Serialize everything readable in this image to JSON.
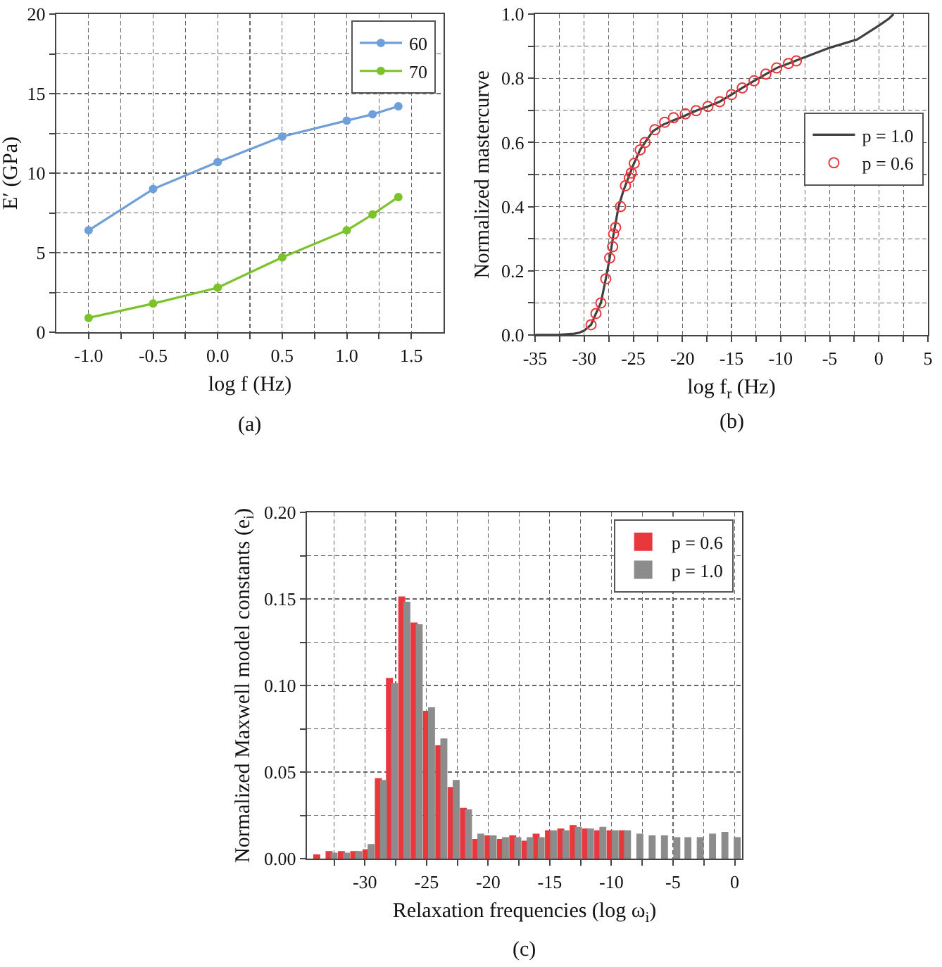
{
  "chart_data": [
    {
      "type": "line",
      "xlabel": "log f (Hz)",
      "ylabel": "E′ (GPa)",
      "annotations": [
        "(a)"
      ],
      "xlim": [
        -1.25,
        1.75
      ],
      "ylim": [
        0,
        20
      ],
      "xticks": [
        {
          "value": -1,
          "label": "-1.0"
        },
        {
          "value": -0.75,
          "label": null
        },
        {
          "value": -0.5,
          "label": "-0.5"
        },
        {
          "value": -0.25,
          "label": null
        },
        {
          "value": 0,
          "label": "0.0"
        },
        {
          "value": 0.25,
          "label": null
        },
        {
          "value": 0.5,
          "label": "0.5"
        },
        {
          "value": 0.75,
          "label": null
        },
        {
          "value": 1,
          "label": "1.0"
        },
        {
          "value": 1.25,
          "label": null
        },
        {
          "value": 1.5,
          "label": "1.5"
        }
      ],
      "yticks": [
        0,
        {
          "value": 2.5,
          "label": null
        },
        5,
        {
          "value": 7.5,
          "label": null
        },
        10,
        {
          "value": 12.5,
          "label": null
        },
        15,
        {
          "value": 17.5,
          "label": null
        },
        20
      ],
      "grid": true,
      "legend": "top right",
      "marker": "circle",
      "line_style": "solid",
      "series": [
        {
          "name": "60",
          "color": "#6e9fd8",
          "x": [
            -1,
            -0.5,
            0,
            0.5,
            1,
            1.2,
            1.4
          ],
          "values": [
            6.4,
            9.0,
            10.7,
            12.3,
            13.3,
            13.7,
            14.2
          ]
        },
        {
          "name": "70",
          "color": "#7cc22a",
          "x": [
            -1,
            -0.5,
            0,
            0.5,
            1,
            1.2,
            1.4
          ],
          "values": [
            0.9,
            1.8,
            2.8,
            4.7,
            6.4,
            7.4,
            8.5
          ]
        }
      ]
    },
    {
      "type": "line",
      "xlabel": "log f$_{r}$ (Hz)",
      "ylabel": "Normalized mastercurve",
      "annotations": [
        "(b)"
      ],
      "xlim": [
        -35,
        5
      ],
      "ylim": [
        0,
        1
      ],
      "xticks": [
        -35,
        {
          "value": -32.5,
          "label": null
        },
        -30,
        {
          "value": -27.5,
          "label": null
        },
        -25,
        {
          "value": -22.5,
          "label": null
        },
        -20,
        {
          "value": -17.5,
          "label": null
        },
        -15,
        {
          "value": -12.5,
          "label": null
        },
        -10,
        {
          "value": -7.5,
          "label": null
        },
        -5,
        {
          "value": -2.5,
          "label": null
        },
        0,
        {
          "value": 2.5,
          "label": null
        },
        5
      ],
      "yticks": [
        {
          "value": 0,
          "label": "0.0"
        },
        {
          "value": 0.1,
          "label": null
        },
        0.2,
        {
          "value": 0.3,
          "label": null
        },
        0.4,
        {
          "value": 0.5,
          "label": null
        },
        0.6,
        {
          "value": 0.7,
          "label": null
        },
        0.8,
        {
          "value": 0.9,
          "label": null
        },
        {
          "value": 1,
          "label": "1.0"
        }
      ],
      "grid": true,
      "legend": "right",
      "series": [
        {
          "name": "p = 1.0",
          "color": "#404040",
          "line_style": "solid",
          "x": [
            -35,
            -32.5,
            -31,
            -30.5,
            -30,
            -29.3,
            -28.8,
            -28.3,
            -27.8,
            -27.4,
            -27,
            -26.5,
            -26,
            -25.5,
            -25,
            -24.3,
            -23.8,
            -23,
            -22,
            -21,
            -20,
            -18.6,
            -17.4,
            -16.2,
            -15,
            -13.9,
            -12.7,
            -11.5,
            -10.4,
            -9.2,
            -8,
            -5,
            -2.2,
            0,
            1,
            1.5
          ],
          "values": [
            0,
            0.001,
            0.004,
            0.007,
            0.014,
            0.032,
            0.067,
            0.1,
            0.175,
            0.24,
            0.315,
            0.4,
            0.45,
            0.49,
            0.53,
            0.577,
            0.6,
            0.635,
            0.655,
            0.668,
            0.68,
            0.699,
            0.712,
            0.727,
            0.749,
            0.77,
            0.792,
            0.813,
            0.832,
            0.846,
            0.86,
            0.895,
            0.921,
            0.964,
            0.985,
            1
          ]
        },
        {
          "name": "p = 0.6",
          "type": "scatter",
          "color": "#e8383d",
          "marker": "circle",
          "x": [
            -29.3,
            -28.8,
            -28.3,
            -27.8,
            -27.4,
            -27.1,
            -27,
            -26.8,
            -26.3,
            -25.8,
            -25.4,
            -25.2,
            -24.9,
            -24.3,
            -23.8,
            -22.8,
            -21.8,
            -20.9,
            -19.7,
            -18.6,
            -17.4,
            -16.2,
            -15,
            -13.9,
            -12.7,
            -11.5,
            -10.4,
            -9.2,
            -8.4
          ],
          "values": [
            0.032,
            0.067,
            0.1,
            0.175,
            0.24,
            0.275,
            0.315,
            0.335,
            0.4,
            0.465,
            0.49,
            0.505,
            0.535,
            0.577,
            0.6,
            0.64,
            0.663,
            0.677,
            0.689,
            0.699,
            0.712,
            0.727,
            0.749,
            0.77,
            0.792,
            0.813,
            0.832,
            0.846,
            0.854
          ]
        }
      ]
    },
    {
      "type": "bar",
      "xlabel": "Relaxation frequencies (log ω$_{i}$)",
      "ylabel": "Normalized Maxwell model constants (e$_{i}$)",
      "annotations": [
        "(c)"
      ],
      "xlim": [
        -34.7,
        0.6
      ],
      "ylim": [
        0,
        0.2
      ],
      "xticks": [
        {
          "value": -32.5,
          "label": null
        },
        -30,
        {
          "value": -27.5,
          "label": null
        },
        -25,
        {
          "value": -22.5,
          "label": null
        },
        -20,
        {
          "value": -17.5,
          "label": null
        },
        -15,
        {
          "value": -12.5,
          "label": null
        },
        -10,
        {
          "value": -7.5,
          "label": null
        },
        -5,
        {
          "value": -2.5,
          "label": null
        },
        0
      ],
      "yticks": [
        {
          "value": 0,
          "label": "0.00"
        },
        {
          "value": 0.025,
          "label": null
        },
        {
          "value": 0.05,
          "label": "0.05"
        },
        {
          "value": 0.075,
          "label": null
        },
        {
          "value": 0.1,
          "label": "0.10"
        },
        {
          "value": 0.125,
          "label": null
        },
        {
          "value": 0.15,
          "label": "0.15"
        },
        {
          "value": 0.175,
          "label": null
        },
        {
          "value": 0.2,
          "label": "0.20"
        }
      ],
      "grid": true,
      "legend": "top right",
      "x": [
        -33.7,
        -32.7,
        -31.7,
        -30.7,
        -29.7,
        -28.7,
        -27.8,
        -26.8,
        -25.8,
        -24.8,
        -23.8,
        -22.8,
        -21.8,
        -20.8,
        -19.8,
        -18.8,
        -17.8,
        -16.8,
        -15.9,
        -14.9,
        -13.9,
        -12.9,
        -11.9,
        -10.9,
        -9.9,
        -8.9,
        -7.9,
        -6.9,
        -5.9,
        -4.9,
        -4.0,
        -3.0,
        -2.0,
        -1.0,
        0.0
      ],
      "series": [
        {
          "name": "p = 0.6",
          "color": "#e8383d",
          "values": [
            0.002,
            0.004,
            0.004,
            0.004,
            0.005,
            0.046,
            0.104,
            0.151,
            0.136,
            0.085,
            0.065,
            0.041,
            0.029,
            0.011,
            0.013,
            0.011,
            0.013,
            0.01,
            0.014,
            0.016,
            0.017,
            0.019,
            0.017,
            0.016,
            0.016,
            0.016,
            null,
            null,
            null,
            null,
            null,
            null,
            null,
            null,
            null
          ]
        },
        {
          "name": "p = 1.0",
          "color": "#8c8c8c",
          "values": [
            null,
            0.003,
            0.003,
            0.004,
            0.008,
            0.045,
            0.101,
            0.148,
            0.135,
            0.087,
            0.069,
            0.045,
            0.028,
            0.014,
            0.013,
            0.012,
            0.012,
            0.012,
            0.012,
            0.016,
            0.016,
            0.018,
            0.017,
            0.018,
            0.016,
            0.016,
            0.014,
            0.013,
            0.013,
            0.012,
            0.012,
            0.012,
            0.014,
            0.015,
            0.012
          ]
        }
      ]
    }
  ]
}
